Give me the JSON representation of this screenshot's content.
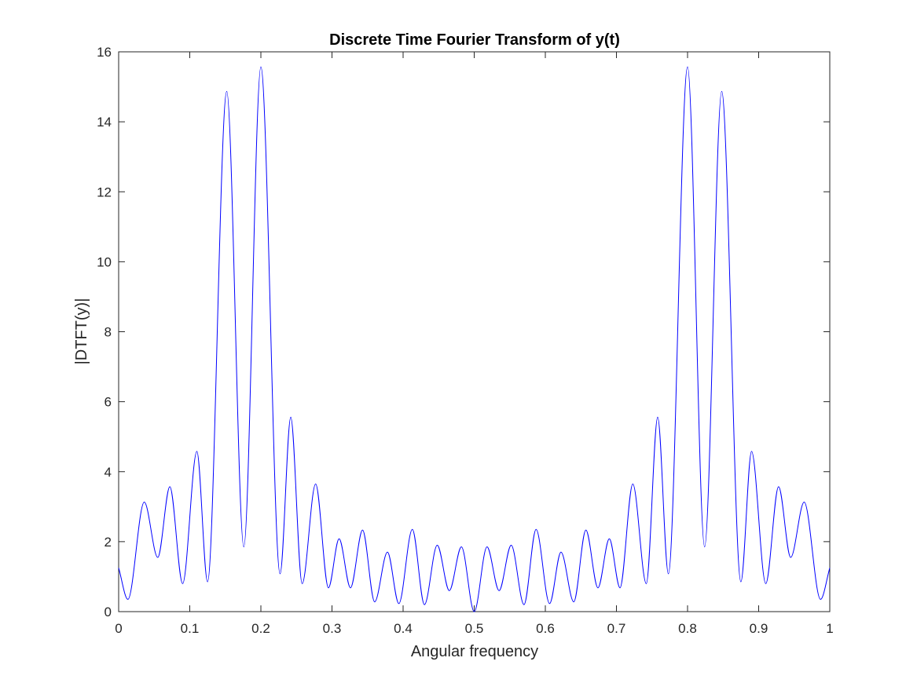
{
  "chart_data": {
    "type": "line",
    "title": "Discrete Time Fourier Transform of y(t)",
    "xlabel": "Angular frequency",
    "ylabel": "|DTFT(y)|",
    "xlim": [
      0,
      1
    ],
    "ylim": [
      0,
      16
    ],
    "xticks": [
      0,
      0.1,
      0.2,
      0.3,
      0.4,
      0.5,
      0.6,
      0.7,
      0.8,
      0.9,
      1
    ],
    "xtick_labels": [
      "0",
      "0.1",
      "0.2",
      "0.3",
      "0.4",
      "0.5",
      "0.6",
      "0.7",
      "0.8",
      "0.9",
      "1"
    ],
    "yticks": [
      0,
      2,
      4,
      6,
      8,
      10,
      12,
      14,
      16
    ],
    "ytick_labels": [
      "0",
      "2",
      "4",
      "6",
      "8",
      "10",
      "12",
      "14",
      "16"
    ],
    "grid": false,
    "box": true,
    "series": [
      {
        "color": "#0000ff",
        "points": [
          [
            0.0,
            1.25
          ],
          [
            0.013,
            0.35
          ],
          [
            0.036,
            3.13
          ],
          [
            0.055,
            1.55
          ],
          [
            0.072,
            3.57
          ],
          [
            0.09,
            0.8
          ],
          [
            0.11,
            4.58
          ],
          [
            0.125,
            0.85
          ],
          [
            0.152,
            14.87
          ],
          [
            0.176,
            1.85
          ],
          [
            0.2,
            15.57
          ],
          [
            0.227,
            1.08
          ],
          [
            0.242,
            5.56
          ],
          [
            0.258,
            0.8
          ],
          [
            0.277,
            3.65
          ],
          [
            0.295,
            0.68
          ],
          [
            0.31,
            2.08
          ],
          [
            0.326,
            0.68
          ],
          [
            0.343,
            2.33
          ],
          [
            0.36,
            0.28
          ],
          [
            0.378,
            1.7
          ],
          [
            0.394,
            0.23
          ],
          [
            0.413,
            2.35
          ],
          [
            0.43,
            0.2
          ],
          [
            0.448,
            1.9
          ],
          [
            0.465,
            0.6
          ],
          [
            0.482,
            1.85
          ],
          [
            0.5,
            0.0
          ],
          [
            0.518,
            1.85
          ],
          [
            0.535,
            0.6
          ],
          [
            0.552,
            1.9
          ],
          [
            0.57,
            0.2
          ],
          [
            0.587,
            2.35
          ],
          [
            0.606,
            0.23
          ],
          [
            0.622,
            1.7
          ],
          [
            0.64,
            0.28
          ],
          [
            0.657,
            2.33
          ],
          [
            0.674,
            0.68
          ],
          [
            0.69,
            2.08
          ],
          [
            0.705,
            0.68
          ],
          [
            0.723,
            3.65
          ],
          [
            0.742,
            0.8
          ],
          [
            0.758,
            5.56
          ],
          [
            0.773,
            1.08
          ],
          [
            0.8,
            15.57
          ],
          [
            0.824,
            1.85
          ],
          [
            0.848,
            14.87
          ],
          [
            0.875,
            0.85
          ],
          [
            0.89,
            4.58
          ],
          [
            0.91,
            0.8
          ],
          [
            0.928,
            3.57
          ],
          [
            0.945,
            1.55
          ],
          [
            0.964,
            3.13
          ],
          [
            0.987,
            0.35
          ],
          [
            1.0,
            1.25
          ]
        ]
      }
    ]
  }
}
